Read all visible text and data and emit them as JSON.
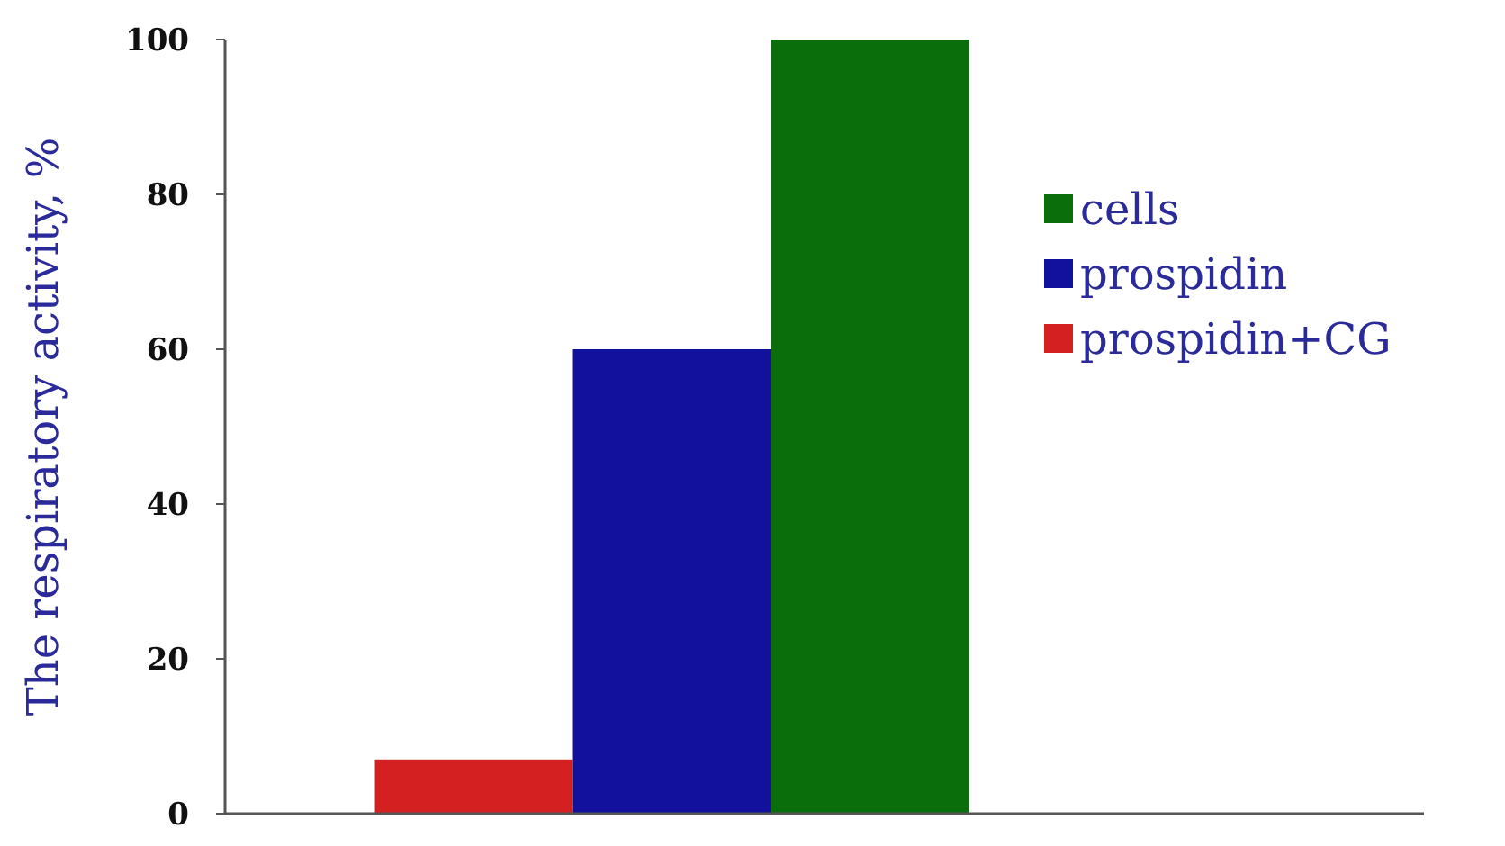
{
  "chart_data": {
    "type": "bar",
    "ylabel": "The respiratory activity, %",
    "categories": [
      null
    ],
    "series": [
      {
        "name": "prospidin+CG",
        "color": "#d42020",
        "values": [
          7
        ]
      },
      {
        "name": "prospidin",
        "color": "#11119e",
        "values": [
          60
        ]
      },
      {
        "name": "cells",
        "color": "#0a6e0a",
        "values": [
          100
        ]
      }
    ],
    "ylim": [
      0,
      100
    ],
    "yticks": [
      0,
      20,
      40,
      60,
      80,
      100
    ],
    "grid": false,
    "legend": "right"
  }
}
